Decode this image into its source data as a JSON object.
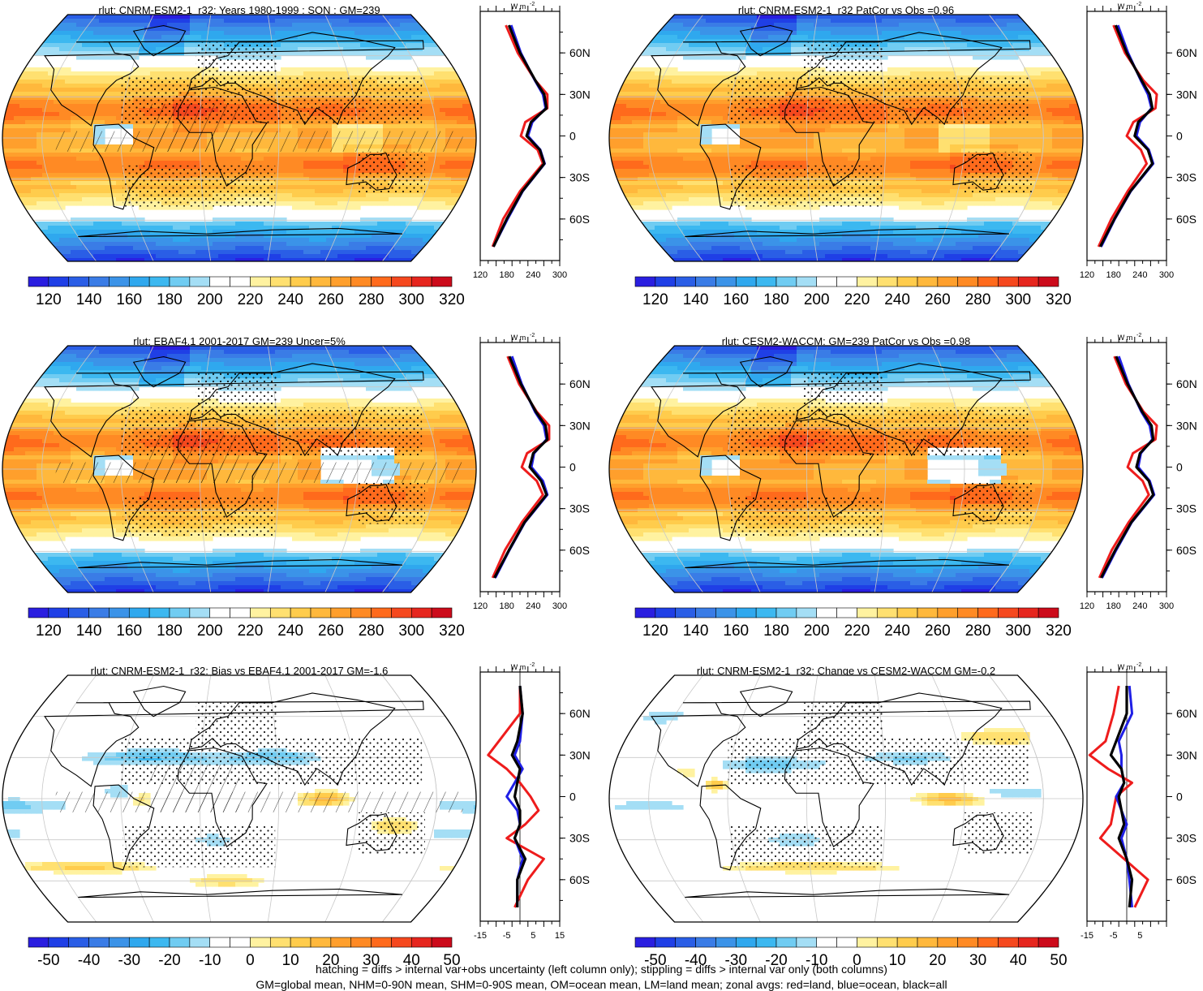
{
  "panels": [
    {
      "title": "rlut: CNRM-ESM2-1_r32: Years 1980-1999 : SON : GM=239",
      "kind": "abs",
      "map": "model"
    },
    {
      "title": "rlut: CNRM-ESM2-1_r32 PatCor vs Obs =0.96",
      "kind": "abs",
      "map": "model"
    },
    {
      "title": "rlut: EBAF4.1 2001-2017 GM=239 Uncer=5%",
      "kind": "abs",
      "map": "obs"
    },
    {
      "title": "rlut: CESM2-WACCM: GM=239 PatCor vs Obs =0.98",
      "kind": "abs",
      "map": "ref"
    },
    {
      "title": "rlut: CNRM-ESM2-1_r32: Bias vs EBAF4.1 2001-2017  GM=-1.6",
      "kind": "diff",
      "map": "bias"
    },
    {
      "title": "rlut: CNRM-ESM2-1_r32: Change vs CESM2-WACCM GM=-0.2",
      "kind": "diff",
      "map": "change"
    }
  ],
  "colorbars": {
    "abs": {
      "labels": [
        "120",
        "140",
        "160",
        "180",
        "200",
        "220",
        "240",
        "260",
        "280",
        "300",
        "320"
      ]
    },
    "diff": {
      "labels": [
        "-50",
        "-40",
        "-30",
        "-20",
        "-10",
        "0",
        "10",
        "20",
        "30",
        "40",
        "50"
      ]
    }
  },
  "zonal_axes": {
    "units": "W m",
    "units_sup": "-2",
    "lat_labels": [
      "60N",
      "30N",
      "0",
      "30S",
      "60S"
    ],
    "abs_x_labels": [
      "120",
      "180",
      "240",
      "300"
    ],
    "diff_x_labels": [
      "-15",
      "-5",
      "5",
      "15"
    ],
    "diff_x_labels_right": [
      "-15",
      "-5",
      "5"
    ]
  },
  "footer": {
    "line1": "hatching = diffs > internal var+obs uncertainty (left column only); stippling = diffs > internal var only (both columns)",
    "line2": "GM=global mean, NHM=0-90N mean, SHM=0-90S mean, OM=ocean mean, LM=land mean; zonal avgs: red=land, blue=ocean, black=all"
  },
  "colors": {
    "abs_palette": [
      "#2a1ee0",
      "#1f3fe6",
      "#2a5ee6",
      "#3a7ce6",
      "#3b93e8",
      "#2fa8ee",
      "#3cb8f0",
      "#70ccf2",
      "#a4def5",
      "#ffffff",
      "#ffffff",
      "#fff2a0",
      "#ffe070",
      "#ffcc4c",
      "#ffb83c",
      "#ff9f2c",
      "#ff8a24",
      "#ff6a1c",
      "#f5481e",
      "#e6261e",
      "#cc0b1b"
    ],
    "diff_palette": [
      "#2a1ee0",
      "#1f3fe6",
      "#2a5ee6",
      "#3a7ce6",
      "#3b93e8",
      "#2fa8ee",
      "#3cb8f0",
      "#70ccf2",
      "#a4def5",
      "#ffffff",
      "#ffffff",
      "#fff2a0",
      "#ffe070",
      "#ffcc4c",
      "#ffb83c",
      "#ff9f2c",
      "#ff8a24",
      "#ff6a1c",
      "#f5481e",
      "#e6261e",
      "#cc0b1b"
    ],
    "land": "#ee1c1c",
    "ocean": "#1f1fe6",
    "all": "#000000"
  },
  "chart_data": [
    {
      "type": "heatmap",
      "title": "rlut: CNRM-ESM2-1_r32: Years 1980-1999 : SON : GM=239",
      "projection": "Robinson",
      "colorbar_range": [
        120,
        320
      ],
      "zonal_mean": {
        "xlabel": "W m-2",
        "xlim": [
          120,
          300
        ],
        "lat": [
          -80,
          -60,
          -40,
          -20,
          -10,
          0,
          10,
          20,
          30,
          40,
          60,
          80
        ],
        "series": [
          {
            "name": "all",
            "values": [
              150,
              180,
              215,
              265,
              255,
              225,
              235,
              270,
              265,
              245,
              210,
              185
            ]
          },
          {
            "name": "land",
            "values": [
              148,
              172,
              210,
              262,
              250,
              212,
              222,
              272,
              272,
              245,
              205,
              178
            ]
          },
          {
            "name": "ocean",
            "values": [
              150,
              182,
              216,
              266,
              256,
              228,
              238,
              268,
              262,
              244,
              212,
              190
            ]
          }
        ]
      }
    },
    {
      "type": "heatmap",
      "title": "rlut: CNRM-ESM2-1_r32 PatCor vs Obs =0.96",
      "projection": "Robinson",
      "colorbar_range": [
        120,
        320
      ],
      "zonal_mean": {
        "xlabel": "W m-2",
        "xlim": [
          120,
          300
        ],
        "lat": [
          -80,
          -60,
          -40,
          -20,
          -10,
          0,
          10,
          20,
          30,
          40,
          60,
          80
        ],
        "series": [
          {
            "name": "all",
            "values": [
              150,
              182,
              218,
              268,
              258,
              228,
              236,
              268,
              262,
              244,
              210,
              185
            ]
          },
          {
            "name": "land",
            "values": [
              146,
              175,
              212,
              255,
              242,
              210,
              225,
              275,
              278,
              248,
              206,
              180
            ]
          },
          {
            "name": "ocean",
            "values": [
              152,
              183,
              219,
              270,
              260,
              232,
              240,
              266,
              258,
              242,
              213,
              190
            ]
          }
        ]
      }
    },
    {
      "type": "heatmap",
      "title": "rlut: EBAF4.1 2001-2017 GM=239 Uncer=5%",
      "projection": "Robinson",
      "colorbar_range": [
        120,
        320
      ],
      "zonal_mean": {
        "xlabel": "W m-2",
        "xlim": [
          120,
          300
        ],
        "lat": [
          -80,
          -60,
          -40,
          -20,
          -10,
          0,
          10,
          20,
          30,
          40,
          60,
          80
        ],
        "series": [
          {
            "name": "all",
            "values": [
              152,
              185,
              220,
              270,
              258,
              232,
              240,
              272,
              268,
              246,
              212,
              186
            ]
          },
          {
            "name": "land",
            "values": [
              148,
              176,
              214,
              262,
              248,
              214,
              226,
              276,
              276,
              248,
              208,
              182
            ]
          },
          {
            "name": "ocean",
            "values": [
              154,
              186,
              221,
              272,
              262,
              236,
              242,
              270,
              264,
              244,
              214,
              192
            ]
          }
        ]
      }
    },
    {
      "type": "heatmap",
      "title": "rlut: CESM2-WACCM: GM=239 PatCor vs Obs =0.98",
      "projection": "Robinson",
      "colorbar_range": [
        120,
        320
      ],
      "zonal_mean": {
        "xlabel": "W m-2",
        "xlim": [
          120,
          300
        ],
        "lat": [
          -80,
          -60,
          -40,
          -20,
          -10,
          0,
          10,
          20,
          30,
          40,
          60,
          80
        ],
        "series": [
          {
            "name": "all",
            "values": [
              152,
              184,
              220,
              270,
              260,
              232,
              240,
              270,
              266,
              245,
              212,
              186
            ]
          },
          {
            "name": "land",
            "values": [
              148,
              176,
              214,
              260,
              246,
              212,
              224,
              275,
              278,
              248,
              208,
              182
            ]
          },
          {
            "name": "ocean",
            "values": [
              154,
              186,
              221,
              272,
              262,
              236,
              242,
              268,
              262,
              243,
              214,
              192
            ]
          }
        ]
      }
    },
    {
      "type": "heatmap",
      "title": "rlut: CNRM-ESM2-1_r32: Bias vs EBAF4.1 2001-2017  GM=-1.6",
      "projection": "Robinson",
      "colorbar_range": [
        -50,
        50
      ],
      "zonal_mean": {
        "xlabel": "W m-2",
        "xlim": [
          -15,
          15
        ],
        "lat": [
          -80,
          -60,
          -45,
          -30,
          -20,
          -10,
          0,
          10,
          20,
          30,
          40,
          60,
          80
        ],
        "series": [
          {
            "name": "all",
            "values": [
              -1,
              -1,
              2,
              -2,
              0,
              0,
              -2,
              -1,
              0,
              -3,
              -1,
              1,
              0
            ]
          },
          {
            "name": "land",
            "values": [
              -2,
              3,
              9,
              -5,
              2,
              7,
              4,
              0,
              -5,
              -12,
              -8,
              0,
              0
            ]
          },
          {
            "name": "ocean",
            "values": [
              -1,
              -1,
              1,
              -2,
              0,
              -1,
              -5,
              -2,
              1,
              -2,
              0,
              1,
              0
            ]
          }
        ]
      }
    },
    {
      "type": "heatmap",
      "title": "rlut: CNRM-ESM2-1_r32: Change vs CESM2-WACCM GM=-0.2",
      "projection": "Robinson",
      "colorbar_range": [
        -50,
        50
      ],
      "zonal_mean": {
        "xlabel": "W m-2",
        "xlim": [
          -15,
          15
        ],
        "lat": [
          -80,
          -60,
          -45,
          -30,
          -20,
          -10,
          0,
          10,
          20,
          30,
          40,
          60,
          80
        ],
        "series": [
          {
            "name": "all",
            "values": [
              1,
              2,
              0,
              -3,
              -1,
              -2,
              -3,
              -1,
              -2,
              -6,
              -4,
              0,
              0
            ]
          },
          {
            "name": "land",
            "values": [
              3,
              8,
              -1,
              -10,
              -6,
              -5,
              -4,
              2,
              -7,
              -14,
              -8,
              -5,
              -3
            ]
          },
          {
            "name": "ocean",
            "values": [
              2,
              1,
              0,
              -2,
              0,
              -2,
              -4,
              -1,
              -2,
              -2,
              -3,
              2,
              1
            ]
          }
        ]
      }
    }
  ]
}
